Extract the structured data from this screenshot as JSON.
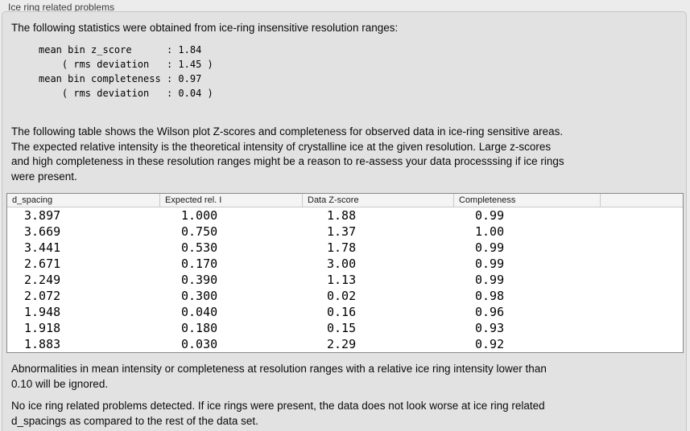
{
  "panel": {
    "title": "Ice ring related problems"
  },
  "intro_text": "The following statistics were obtained from ice-ring insensitive resolution ranges:",
  "stats_block": [
    "mean bin z_score      : 1.84",
    "    ( rms deviation   : 1.45 )",
    "mean bin completeness : 0.97",
    "    ( rms deviation   : 0.04 )"
  ],
  "table_description": [
    "The following table shows the Wilson plot Z-scores and completeness for observed data in ice-ring sensitive areas.",
    "The expected relative intensity is the theoretical intensity of crystalline ice at the given resolution. Large z-scores",
    "and high completeness in these resolution ranges might be a reason to re-assess your data processsing if ice rings",
    "were present."
  ],
  "table": {
    "columns": [
      "d_spacing",
      "Expected rel. I",
      "Data Z-score",
      "Completeness"
    ],
    "rows": [
      [
        "3.897",
        "1.000",
        "1.88",
        "0.99"
      ],
      [
        "3.669",
        "0.750",
        "1.37",
        "1.00"
      ],
      [
        "3.441",
        "0.530",
        "1.78",
        "0.99"
      ],
      [
        "2.671",
        "0.170",
        "3.00",
        "0.99"
      ],
      [
        "2.249",
        "0.390",
        "1.13",
        "0.99"
      ],
      [
        "2.072",
        "0.300",
        "0.02",
        "0.98"
      ],
      [
        "1.948",
        "0.040",
        "0.16",
        "0.96"
      ],
      [
        "1.918",
        "0.180",
        "0.15",
        "0.93"
      ],
      [
        "1.883",
        "0.030",
        "2.29",
        "0.92"
      ]
    ]
  },
  "ignore_note": [
    "Abnormalities in mean intensity or completeness at resolution ranges with a relative ice ring intensity lower than",
    "0.10 will be ignored."
  ],
  "conclusion": [
    "No ice ring related problems detected. If ice rings were present, the data does not look worse at ice ring related",
    "d_spacings as compared to the rest of the data set."
  ]
}
